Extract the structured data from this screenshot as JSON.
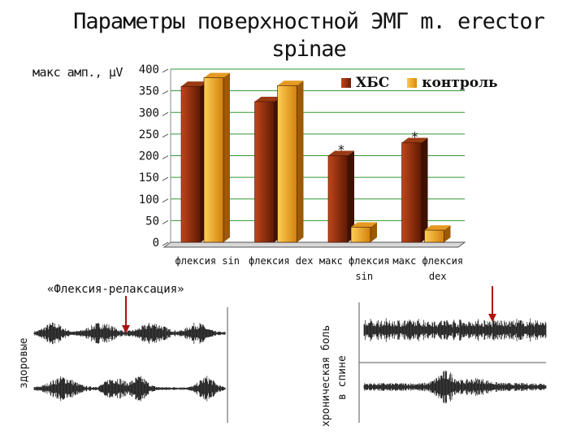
{
  "page": {
    "title": "Параметры поверхностной ЭМГ m. erector spinae",
    "emg_caption": "«Флексия-релаксация»",
    "label_healthy": "здоровые",
    "label_pain_line1": "хроническая боль",
    "label_pain_line2": "в спине"
  },
  "chart_data": {
    "type": "bar",
    "title": "Параметры поверхностной ЭМГ m. erector spinae",
    "ylabel": "макс амп., µV",
    "xlabel": "",
    "ylim": [
      0,
      400
    ],
    "yticks": [
      0,
      50,
      100,
      150,
      200,
      250,
      300,
      350,
      400
    ],
    "categories": [
      "флексия sin",
      "флексия dex",
      "макс флексия sin",
      "макс флексия dex"
    ],
    "category_lines": [
      [
        "флексия sin"
      ],
      [
        "флексия dex"
      ],
      [
        "макс флексия",
        "sin"
      ],
      [
        "макс флексия",
        "dex"
      ]
    ],
    "series": [
      {
        "name": "ХБС",
        "values": [
          360,
          325,
          200,
          230
        ]
      },
      {
        "name": "контроль",
        "values": [
          380,
          362,
          35,
          28
        ]
      }
    ],
    "annotations": [
      {
        "text": "*",
        "category": "макс флексия sin",
        "series": "ХБС"
      },
      {
        "text": "*",
        "category": "макс флексия dex",
        "series": "ХБС"
      }
    ],
    "grid": true,
    "legend_position": "top-right",
    "colors": {
      "ХБС": "#8b2c0c",
      "контроль": "#f0a020"
    }
  }
}
